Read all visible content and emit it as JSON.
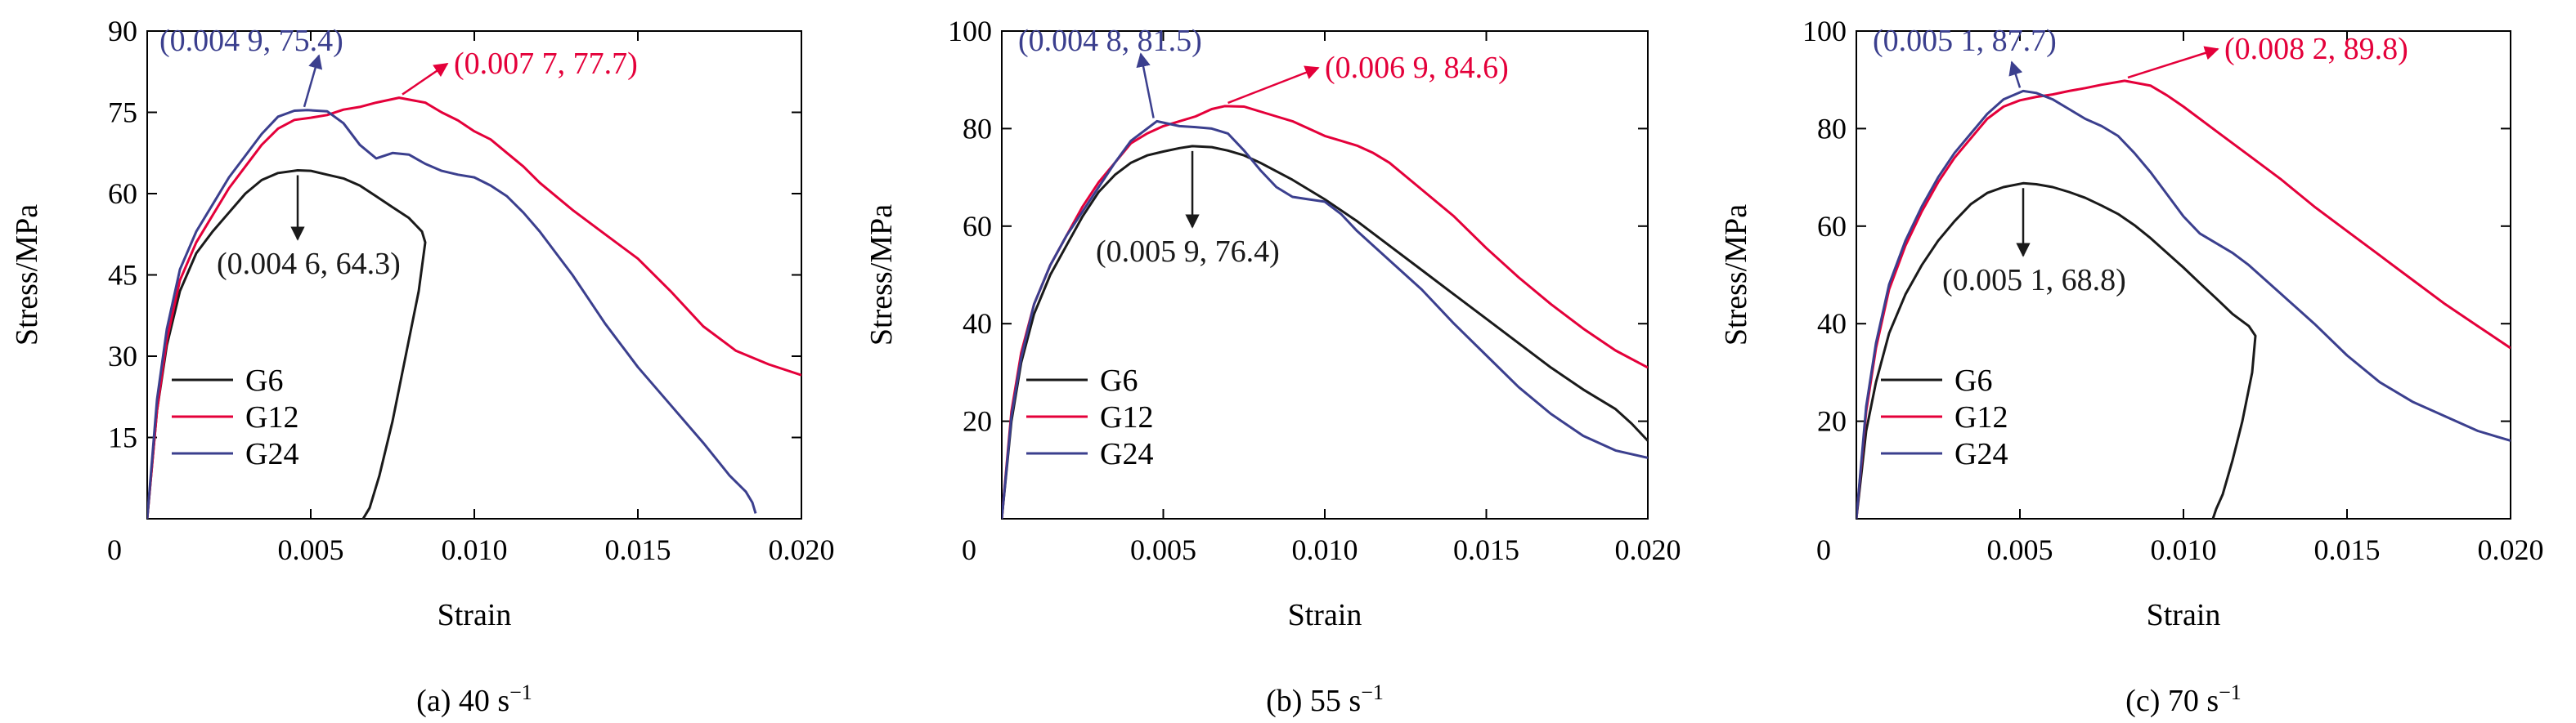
{
  "colors": {
    "G6": "#1a1a1a",
    "G12": "#e4003a",
    "G24": "#3b3f8e",
    "axis": "#000000"
  },
  "chart_data": [
    {
      "type": "line",
      "caption": "(a) 40 s",
      "caption_sup": "−1",
      "xlabel": "Strain",
      "ylabel": "Stress/MPa",
      "xlim": [
        0,
        0.02
      ],
      "ylim": [
        0,
        90
      ],
      "xticks": [
        "0",
        "0.005",
        "0.010",
        "0.015",
        "0.020"
      ],
      "xtick_values": [
        0,
        0.005,
        0.01,
        0.015,
        0.02
      ],
      "yticks": [
        "15",
        "30",
        "45",
        "60",
        "75",
        "90"
      ],
      "ytick_values": [
        15,
        30,
        45,
        60,
        75,
        90
      ],
      "legend": [
        "G6",
        "G12",
        "G24"
      ],
      "legend_position": "bottom-left",
      "series": [
        {
          "name": "G6",
          "color_key": "G6",
          "x": [
            0,
            0.0003,
            0.0006,
            0.001,
            0.0015,
            0.002,
            0.0025,
            0.003,
            0.0035,
            0.004,
            0.0046,
            0.005,
            0.0055,
            0.006,
            0.0065,
            0.007,
            0.0075,
            0.008,
            0.0084,
            0.0085,
            0.0083,
            0.0079,
            0.0075,
            0.0071,
            0.0068,
            0.0066
          ],
          "y": [
            0,
            20,
            32,
            42,
            49,
            53,
            56.5,
            60,
            62.5,
            63.8,
            64.3,
            64.2,
            63.5,
            62.8,
            61.5,
            59.5,
            57.5,
            55.5,
            53,
            51,
            42,
            30,
            18,
            8,
            2,
            0
          ]
        },
        {
          "name": "G12",
          "color_key": "G12",
          "x": [
            0,
            0.0003,
            0.0006,
            0.001,
            0.0015,
            0.002,
            0.0025,
            0.003,
            0.0035,
            0.004,
            0.0045,
            0.005,
            0.0055,
            0.006,
            0.0065,
            0.007,
            0.0077,
            0.0085,
            0.009,
            0.0095,
            0.01,
            0.0105,
            0.011,
            0.0115,
            0.012,
            0.013,
            0.014,
            0.015,
            0.016,
            0.017,
            0.018,
            0.019,
            0.02
          ],
          "y": [
            0,
            20,
            33,
            44,
            51,
            56,
            61,
            65,
            69,
            72,
            73.6,
            74,
            74.5,
            75.5,
            76,
            76.8,
            77.7,
            76.8,
            75,
            73.5,
            71.5,
            70,
            67.5,
            65,
            62,
            57,
            52.5,
            48,
            42,
            35.5,
            31,
            28.5,
            26.5
          ]
        },
        {
          "name": "G24",
          "color_key": "G24",
          "x": [
            0,
            0.0003,
            0.0006,
            0.001,
            0.0015,
            0.002,
            0.0025,
            0.003,
            0.0035,
            0.004,
            0.0045,
            0.0049,
            0.0055,
            0.006,
            0.0065,
            0.007,
            0.0075,
            0.008,
            0.0085,
            0.009,
            0.0095,
            0.01,
            0.0105,
            0.011,
            0.0115,
            0.012,
            0.0125,
            0.013,
            0.0135,
            0.014,
            0.015,
            0.016,
            0.017,
            0.0178,
            0.0183,
            0.0185,
            0.0186
          ],
          "y": [
            0,
            22,
            35,
            46,
            53,
            58,
            63,
            67,
            71,
            74.2,
            75.3,
            75.4,
            75.2,
            73,
            69,
            66.5,
            67.5,
            67.2,
            65.5,
            64.2,
            63.5,
            63,
            61.5,
            59.5,
            56.5,
            53,
            49,
            45,
            40.5,
            36,
            28,
            21,
            14,
            8,
            5,
            3,
            1
          ]
        }
      ],
      "annotations": [
        {
          "text": "(0.004 9, 75.4)",
          "color_key": "G24"
        },
        {
          "text": "(0.007 7, 77.7)",
          "color_key": "G12"
        },
        {
          "text": "(0.004 6, 64.3)",
          "color_key": "G6"
        }
      ]
    },
    {
      "type": "line",
      "caption": "(b) 55 s",
      "caption_sup": "−1",
      "xlabel": "Strain",
      "ylabel": "Stress/MPa",
      "xlim": [
        0,
        0.02
      ],
      "ylim": [
        0,
        100
      ],
      "xticks": [
        "0",
        "0.005",
        "0.010",
        "0.015",
        "0.020"
      ],
      "xtick_values": [
        0,
        0.005,
        0.01,
        0.015,
        0.02
      ],
      "yticks": [
        "20",
        "40",
        "60",
        "80",
        "100"
      ],
      "ytick_values": [
        20,
        40,
        60,
        80,
        100
      ],
      "legend": [
        "G6",
        "G12",
        "G24"
      ],
      "legend_position": "bottom-left",
      "series": [
        {
          "name": "G6",
          "color_key": "G6",
          "x": [
            0,
            0.0003,
            0.0006,
            0.001,
            0.0015,
            0.002,
            0.0025,
            0.003,
            0.0035,
            0.004,
            0.0045,
            0.005,
            0.0055,
            0.0059,
            0.0065,
            0.007,
            0.0075,
            0.008,
            0.009,
            0.01,
            0.011,
            0.012,
            0.013,
            0.014,
            0.015,
            0.016,
            0.017,
            0.018,
            0.019,
            0.0195,
            0.02
          ],
          "y": [
            0,
            20,
            32,
            42,
            50,
            56,
            62,
            67,
            70.5,
            73,
            74.5,
            75.3,
            76,
            76.4,
            76.2,
            75.5,
            74.5,
            73,
            69.5,
            65.5,
            61,
            56,
            51,
            46,
            41,
            36,
            31,
            26.5,
            22.5,
            19.5,
            16
          ]
        },
        {
          "name": "G12",
          "color_key": "G12",
          "x": [
            0,
            0.0003,
            0.0006,
            0.001,
            0.0015,
            0.002,
            0.0025,
            0.003,
            0.0035,
            0.004,
            0.0045,
            0.005,
            0.0055,
            0.006,
            0.0065,
            0.0069,
            0.0075,
            0.008,
            0.0085,
            0.009,
            0.0095,
            0.01,
            0.0105,
            0.011,
            0.0115,
            0.012,
            0.013,
            0.014,
            0.015,
            0.016,
            0.017,
            0.018,
            0.019,
            0.02
          ],
          "y": [
            0,
            22,
            34,
            44,
            52,
            58,
            64,
            69,
            73,
            77,
            79,
            80.5,
            81.5,
            82.5,
            84,
            84.6,
            84.5,
            83.5,
            82.5,
            81.5,
            80,
            78.5,
            77.5,
            76.5,
            75,
            73,
            67.5,
            62,
            55.5,
            49.5,
            44,
            39,
            34.5,
            31
          ]
        },
        {
          "name": "G24",
          "color_key": "G24",
          "x": [
            0,
            0.0003,
            0.0006,
            0.001,
            0.0015,
            0.002,
            0.0025,
            0.003,
            0.0035,
            0.004,
            0.0048,
            0.0055,
            0.006,
            0.0065,
            0.007,
            0.0075,
            0.008,
            0.0085,
            0.009,
            0.0095,
            0.01,
            0.0105,
            0.011,
            0.0115,
            0.012,
            0.013,
            0.014,
            0.015,
            0.016,
            0.017,
            0.018,
            0.019,
            0.02
          ],
          "y": [
            0,
            21,
            33,
            44,
            52,
            58,
            63,
            68,
            73,
            77.5,
            81.5,
            80.5,
            80.3,
            80,
            79,
            75.5,
            71.5,
            68,
            66,
            65.5,
            65,
            62.5,
            59,
            56,
            53,
            47,
            40,
            33.5,
            27,
            21.5,
            17,
            14,
            12.5
          ]
        }
      ],
      "annotations": [
        {
          "text": "(0.004 8, 81.5)",
          "color_key": "G24"
        },
        {
          "text": "(0.006 9, 84.6)",
          "color_key": "G12"
        },
        {
          "text": "(0.005 9, 76.4)",
          "color_key": "G6"
        }
      ]
    },
    {
      "type": "line",
      "caption": "(c) 70 s",
      "caption_sup": "−1",
      "xlabel": "Strain",
      "ylabel": "Stress/MPa",
      "xlim": [
        0,
        0.02
      ],
      "ylim": [
        0,
        100
      ],
      "xticks": [
        "0",
        "0.005",
        "0.010",
        "0.015",
        "0.020"
      ],
      "xtick_values": [
        0,
        0.005,
        0.01,
        0.015,
        0.02
      ],
      "yticks": [
        "20",
        "40",
        "60",
        "80",
        "100"
      ],
      "ytick_values": [
        20,
        40,
        60,
        80,
        100
      ],
      "legend": [
        "G6",
        "G12",
        "G24"
      ],
      "legend_position": "bottom-left",
      "series": [
        {
          "name": "G6",
          "color_key": "G6",
          "x": [
            0,
            0.0003,
            0.0006,
            0.001,
            0.0015,
            0.002,
            0.0025,
            0.003,
            0.0035,
            0.004,
            0.0045,
            0.0051,
            0.0055,
            0.006,
            0.0065,
            0.007,
            0.0075,
            0.008,
            0.0085,
            0.009,
            0.0095,
            0.01,
            0.0105,
            0.011,
            0.0115,
            0.012,
            0.0122,
            0.0121,
            0.0118,
            0.0115,
            0.0112,
            0.011,
            0.0109
          ],
          "y": [
            0,
            18,
            28,
            38,
            46,
            52,
            57,
            61,
            64.5,
            66.8,
            68,
            68.8,
            68.6,
            68,
            67,
            65.8,
            64.2,
            62.5,
            60.2,
            57.5,
            54.5,
            51.5,
            48.3,
            45.2,
            42,
            39.5,
            37.5,
            30,
            20,
            12,
            5,
            2,
            0
          ]
        },
        {
          "name": "G12",
          "color_key": "G12",
          "x": [
            0,
            0.0003,
            0.0006,
            0.001,
            0.0015,
            0.002,
            0.0025,
            0.003,
            0.0035,
            0.004,
            0.0045,
            0.005,
            0.0055,
            0.006,
            0.0065,
            0.007,
            0.0075,
            0.0082,
            0.009,
            0.0095,
            0.01,
            0.011,
            0.012,
            0.013,
            0.014,
            0.015,
            0.016,
            0.017,
            0.018,
            0.019,
            0.02
          ],
          "y": [
            0,
            22,
            35,
            47,
            56,
            63,
            69,
            74,
            78,
            82,
            84.5,
            85.8,
            86.5,
            87,
            87.7,
            88.3,
            89,
            89.8,
            88.8,
            86.8,
            84.5,
            79.5,
            74.5,
            69.5,
            64,
            59,
            54,
            49,
            44,
            39.5,
            35
          ]
        },
        {
          "name": "G24",
          "color_key": "G24",
          "x": [
            0,
            0.0003,
            0.0006,
            0.001,
            0.0015,
            0.002,
            0.0025,
            0.003,
            0.0035,
            0.004,
            0.0045,
            0.0051,
            0.0055,
            0.006,
            0.0065,
            0.007,
            0.0075,
            0.008,
            0.0085,
            0.009,
            0.0095,
            0.01,
            0.0105,
            0.011,
            0.0115,
            0.012,
            0.013,
            0.014,
            0.015,
            0.016,
            0.017,
            0.018,
            0.019,
            0.02
          ],
          "y": [
            0,
            23,
            36,
            48,
            57,
            64,
            70,
            75,
            79,
            83,
            86,
            87.7,
            87.3,
            86,
            84,
            82,
            80.5,
            78.5,
            75,
            71,
            66.5,
            62,
            58.5,
            56.5,
            54.5,
            52,
            46,
            40,
            33.5,
            28,
            24,
            21,
            18,
            16
          ]
        }
      ],
      "annotations": [
        {
          "text": "(0.005 1, 87.7)",
          "color_key": "G24"
        },
        {
          "text": "(0.008 2, 89.8)",
          "color_key": "G12"
        },
        {
          "text": "(0.005 1, 68.8)",
          "color_key": "G6"
        }
      ]
    }
  ]
}
